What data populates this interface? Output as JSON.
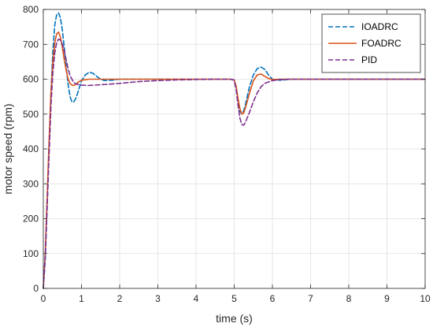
{
  "chart_data": {
    "type": "line",
    "title": "",
    "xlabel": "time (s)",
    "ylabel": "motor speed (rpm)",
    "xlim": [
      0,
      10
    ],
    "ylim": [
      0,
      800
    ],
    "xticks": [
      0,
      1,
      2,
      3,
      4,
      5,
      6,
      7,
      8,
      9,
      10
    ],
    "yticks": [
      0,
      100,
      200,
      300,
      400,
      500,
      600,
      700,
      800
    ],
    "grid": true,
    "legend_position": "top-right",
    "series": [
      {
        "name": "IOADRC",
        "color": "#0072BD",
        "style": "dashed",
        "x": [
          0,
          0.05,
          0.1,
          0.15,
          0.2,
          0.25,
          0.3,
          0.35,
          0.4,
          0.45,
          0.5,
          0.55,
          0.6,
          0.65,
          0.7,
          0.75,
          0.8,
          0.85,
          0.9,
          0.95,
          1.0,
          1.1,
          1.2,
          1.3,
          1.4,
          1.5,
          1.6,
          1.8,
          2.0,
          2.5,
          3.0,
          3.5,
          4.0,
          4.5,
          4.9,
          5.0,
          5.05,
          5.1,
          5.15,
          5.2,
          5.25,
          5.3,
          5.35,
          5.4,
          5.5,
          5.6,
          5.7,
          5.8,
          5.9,
          6.0,
          6.2,
          6.5,
          7.0,
          7.5,
          8.0,
          8.5,
          9.0,
          9.5,
          10.0
        ],
        "y": [
          0,
          80,
          230,
          400,
          560,
          680,
          755,
          785,
          790,
          775,
          740,
          690,
          635,
          585,
          550,
          535,
          535,
          545,
          560,
          578,
          595,
          612,
          620,
          617,
          608,
          600,
          596,
          597,
          600,
          600,
          600,
          600,
          600,
          600,
          600,
          598,
          575,
          535,
          508,
          500,
          510,
          530,
          555,
          578,
          612,
          630,
          635,
          628,
          612,
          600,
          597,
          600,
          600,
          600,
          600,
          600,
          600,
          600,
          600
        ]
      },
      {
        "name": "FOADRC",
        "color": "#D95319",
        "style": "solid",
        "x": [
          0,
          0.05,
          0.1,
          0.15,
          0.2,
          0.25,
          0.3,
          0.35,
          0.4,
          0.45,
          0.5,
          0.55,
          0.6,
          0.65,
          0.7,
          0.75,
          0.8,
          0.85,
          0.9,
          0.95,
          1.0,
          1.2,
          1.5,
          2.0,
          2.5,
          3.0,
          3.5,
          4.0,
          4.5,
          4.9,
          5.0,
          5.05,
          5.1,
          5.15,
          5.2,
          5.25,
          5.3,
          5.4,
          5.5,
          5.6,
          5.7,
          5.8,
          5.9,
          6.0,
          6.2,
          6.5,
          7.0,
          8.0,
          9.0,
          10.0
        ],
        "y": [
          0,
          100,
          260,
          420,
          560,
          650,
          705,
          730,
          735,
          720,
          690,
          655,
          625,
          600,
          588,
          583,
          582,
          585,
          590,
          594,
          597,
          600,
          600,
          600,
          600,
          600,
          600,
          600,
          600,
          600,
          598,
          580,
          545,
          515,
          500,
          503,
          520,
          560,
          595,
          612,
          615,
          608,
          602,
          599,
          600,
          600,
          600,
          600,
          600,
          600
        ]
      },
      {
        "name": "PID",
        "color": "#7E2F8E",
        "style": "dashed",
        "x": [
          0,
          0.05,
          0.1,
          0.15,
          0.2,
          0.25,
          0.3,
          0.35,
          0.4,
          0.45,
          0.5,
          0.55,
          0.6,
          0.65,
          0.7,
          0.8,
          0.9,
          1.0,
          1.2,
          1.5,
          2.0,
          2.5,
          3.0,
          3.5,
          4.0,
          4.5,
          4.9,
          5.0,
          5.05,
          5.1,
          5.15,
          5.2,
          5.25,
          5.3,
          5.4,
          5.5,
          5.6,
          5.7,
          5.8,
          6.0,
          6.2,
          6.5,
          7.0,
          8.0,
          9.0,
          10.0
        ],
        "y": [
          0,
          90,
          230,
          380,
          520,
          620,
          675,
          705,
          715,
          712,
          700,
          680,
          655,
          630,
          610,
          590,
          585,
          583,
          582,
          584,
          588,
          593,
          596,
          598,
          599,
          600,
          600,
          597,
          570,
          525,
          488,
          470,
          468,
          478,
          505,
          535,
          560,
          578,
          588,
          596,
          599,
          600,
          600,
          600,
          600,
          600
        ]
      }
    ]
  }
}
